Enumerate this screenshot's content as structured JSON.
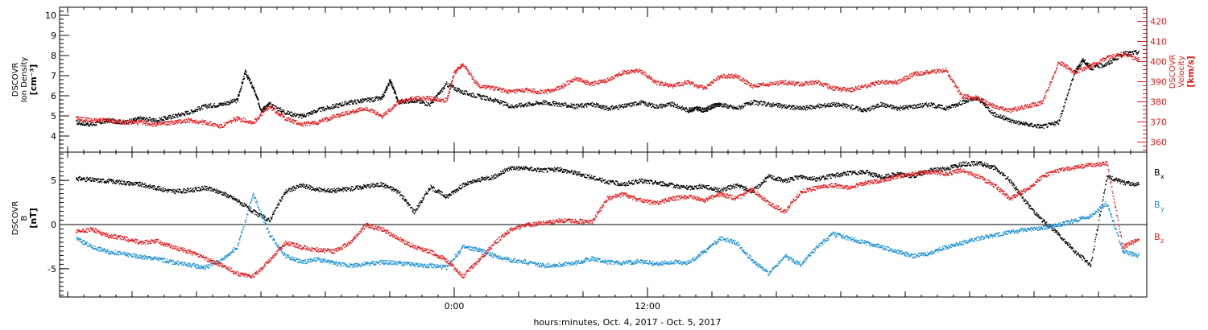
{
  "colors": {
    "black": "#000000",
    "red": "#e8191c",
    "blue": "#1a8fd6"
  },
  "chart_data": [
    {
      "type": "scatter",
      "panel": "top",
      "ylabel_lines": [
        "DSCOVR",
        "Ion Density"
      ],
      "yunit": "[cm⁻³]",
      "ylim": [
        3.2,
        10.4
      ],
      "yticks": [
        4,
        5,
        6,
        7,
        8,
        9,
        10
      ],
      "y2label_lines": [
        "DSCOVR",
        "Velocity"
      ],
      "y2unit": "[km/s]",
      "y2lim": [
        355,
        427
      ],
      "y2ticks": [
        360,
        370,
        380,
        390,
        400,
        410,
        420
      ],
      "series": [
        {
          "color": "black",
          "axis": "left",
          "x": [
            -23.5,
            -22.5,
            -21.5,
            -20.5,
            -19.5,
            -18.5,
            -17.5,
            -16.5,
            -15.5,
            -14.5,
            -13.5,
            -13,
            -12.5,
            -12,
            -11.5,
            -10.5,
            -9.5,
            -8.5,
            -7.5,
            -6.5,
            -5.5,
            -4.5,
            -4,
            -3.5,
            -2.5,
            -1.5,
            -0.5,
            0.5,
            1.5,
            2.5,
            3.5,
            4.5,
            5.5,
            6.5,
            7.5,
            8.5,
            9.5,
            10.5,
            11.5,
            12.5,
            13.5,
            14.5,
            15,
            15.5,
            16,
            16.5,
            17.5,
            18.5,
            19.5,
            20.5,
            21.5,
            22.5,
            23.5,
            24.5,
            25.5,
            26.5,
            27.5,
            28.5,
            29.5,
            30.5,
            31.5,
            32.5,
            33.5,
            34.5,
            35.5,
            36.5,
            37.5,
            38.5,
            39,
            39.5,
            40.5,
            41.5,
            42.5
          ],
          "y": [
            4.7,
            4.6,
            4.8,
            4.7,
            4.9,
            4.8,
            5.0,
            5.2,
            5.5,
            5.6,
            5.8,
            7.2,
            6.4,
            5.3,
            5.6,
            5.2,
            5.0,
            5.3,
            5.5,
            5.7,
            5.8,
            5.9,
            6.8,
            5.7,
            5.8,
            5.6,
            6.6,
            6.2,
            6.0,
            5.8,
            5.5,
            5.6,
            5.7,
            5.6,
            5.5,
            5.6,
            5.4,
            5.5,
            5.7,
            5.5,
            5.6,
            5.3,
            5.4,
            5.3,
            5.5,
            5.6,
            5.4,
            5.7,
            5.6,
            5.5,
            5.4,
            5.5,
            5.6,
            5.5,
            5.3,
            5.6,
            5.4,
            5.5,
            5.6,
            5.4,
            5.7,
            5.9,
            5.1,
            4.8,
            4.6,
            4.5,
            4.7,
            7.2,
            7.8,
            7.4,
            7.6,
            8.1,
            8.2
          ]
        },
        {
          "color": "red",
          "axis": "right",
          "x": [
            -23.5,
            -22.5,
            -21.5,
            -20.5,
            -19.5,
            -18.5,
            -17.5,
            -16.5,
            -15.5,
            -14.5,
            -13.5,
            -12.5,
            -11.5,
            -10.5,
            -9.5,
            -8.5,
            -7.5,
            -6.5,
            -5.5,
            -4.5,
            -3.5,
            -2.5,
            -1.5,
            -0.5,
            0,
            0.5,
            1.5,
            2.5,
            3.5,
            4.5,
            5.5,
            6.5,
            7.5,
            8.5,
            9.5,
            10.5,
            11.5,
            12.5,
            13.5,
            14.5,
            15.5,
            16.5,
            17.5,
            18.5,
            19.5,
            20.5,
            21.5,
            22.5,
            23.5,
            24.5,
            25.5,
            26.5,
            27.5,
            28.5,
            29.5,
            30.5,
            31.5,
            32.5,
            33.5,
            34.5,
            35.5,
            36.5,
            37.5,
            38.5,
            39.5,
            40.5,
            41.5,
            42.5
          ],
          "y": [
            372,
            371,
            371,
            370,
            370,
            369,
            370,
            371,
            370,
            368,
            372,
            370,
            378,
            372,
            369,
            370,
            373,
            375,
            377,
            373,
            380,
            382,
            382,
            381,
            395,
            399,
            388,
            387,
            385,
            386,
            385,
            387,
            392,
            389,
            391,
            395,
            396,
            390,
            388,
            390,
            387,
            393,
            393,
            388,
            389,
            390,
            389,
            390,
            387,
            386,
            388,
            390,
            390,
            394,
            395,
            396,
            383,
            382,
            378,
            376,
            378,
            380,
            400,
            395,
            398,
            402,
            404,
            401
          ]
        }
      ]
    },
    {
      "type": "scatter",
      "panel": "bottom",
      "ylabel_lines": [
        "DSCOVR",
        "B"
      ],
      "yunit": "[nT]",
      "ylim": [
        -8.2,
        8.2
      ],
      "yticks": [
        -5,
        0,
        5
      ],
      "ytick_labels": [
        "-5",
        "0",
        "5"
      ],
      "legend": [
        "B",
        "B",
        "B"
      ],
      "legend_subscripts": [
        "x",
        "y",
        "z"
      ],
      "legend_position": "right",
      "series": [
        {
          "color": "black",
          "x": [
            -23.5,
            -22.5,
            -21.5,
            -20.5,
            -19.5,
            -18.5,
            -17.5,
            -16.5,
            -15.5,
            -14.5,
            -13.5,
            -12.5,
            -11.5,
            -10.5,
            -9.5,
            -8.5,
            -7.5,
            -6.5,
            -5.5,
            -4.5,
            -3.5,
            -2.5,
            -1.5,
            -0.5,
            0.5,
            1.5,
            2.5,
            3.5,
            4.5,
            5.5,
            6.5,
            7.5,
            8.5,
            9.5,
            10.5,
            11.5,
            12.5,
            13.5,
            14.5,
            15.5,
            16.5,
            17.5,
            18.5,
            19.5,
            20.5,
            21.5,
            22.5,
            23.5,
            24.5,
            25.5,
            26.5,
            27.5,
            28.5,
            29.5,
            30.5,
            31.5,
            32.5,
            33.5,
            34.5,
            35.5,
            36.5,
            37.5,
            38.5,
            39.5,
            40.5,
            41.5,
            42.5
          ],
          "y": [
            5.3,
            5.1,
            5.0,
            4.8,
            4.6,
            4.2,
            3.8,
            3.9,
            4.2,
            3.7,
            2.8,
            1.5,
            0.5,
            3.8,
            4.5,
            4.0,
            3.9,
            4.1,
            4.4,
            4.6,
            3.8,
            1.5,
            4.3,
            3.2,
            4.5,
            5.1,
            5.5,
            6.5,
            6.4,
            6.2,
            6.3,
            5.9,
            5.4,
            4.9,
            4.6,
            5.0,
            4.8,
            4.5,
            4.2,
            4.4,
            3.9,
            4.5,
            3.8,
            5.5,
            5.0,
            5.5,
            5.2,
            5.6,
            5.9,
            6.0,
            5.4,
            5.8,
            5.5,
            6.2,
            6.4,
            6.9,
            7.0,
            6.5,
            5.0,
            2.5,
            0.5,
            -1.0,
            -3.0,
            -4.5,
            5.5,
            4.8,
            4.6
          ]
        },
        {
          "color": "blue",
          "x": [
            -23.5,
            -22.5,
            -21.5,
            -20.5,
            -19.5,
            -18.5,
            -17.5,
            -16.5,
            -15.5,
            -14.5,
            -13.5,
            -12.5,
            -11.5,
            -10.5,
            -9.5,
            -8.5,
            -7.5,
            -6.5,
            -5.5,
            -4.5,
            -3.5,
            -2.5,
            -1.5,
            -0.5,
            0.5,
            1.5,
            2.5,
            3.5,
            4.5,
            5.5,
            6.5,
            7.5,
            8.5,
            9.5,
            10.5,
            11.5,
            12.5,
            13.5,
            14.5,
            15.5,
            16.5,
            17.5,
            18.5,
            19.5,
            20.5,
            21.5,
            22.5,
            23.5,
            24.5,
            25.5,
            26.5,
            27.5,
            28.5,
            29.5,
            30.5,
            31.5,
            32.5,
            33.5,
            34.5,
            35.5,
            36.5,
            37.5,
            38.5,
            39.5,
            40.5,
            41.5,
            42.5
          ],
          "y": [
            -1.5,
            -2.5,
            -3.0,
            -3.3,
            -3.6,
            -3.8,
            -4.2,
            -4.5,
            -4.8,
            -4.0,
            -2.5,
            3.5,
            -1.0,
            -3.5,
            -4.2,
            -3.9,
            -4.3,
            -4.6,
            -4.4,
            -4.2,
            -4.3,
            -4.5,
            -4.6,
            -4.8,
            -2.5,
            -2.8,
            -3.5,
            -4.0,
            -4.2,
            -4.6,
            -4.5,
            -4.3,
            -3.8,
            -4.2,
            -4.3,
            -4.1,
            -4.4,
            -4.2,
            -4.3,
            -3.0,
            -1.5,
            -2.0,
            -4.0,
            -5.5,
            -3.5,
            -4.5,
            -2.5,
            -1.0,
            -1.5,
            -2.0,
            -2.5,
            -3.0,
            -3.5,
            -3.2,
            -2.5,
            -2.0,
            -1.5,
            -1.2,
            -0.8,
            -0.5,
            -0.3,
            0.0,
            0.5,
            1.0,
            2.5,
            -3.0,
            -3.5
          ]
        },
        {
          "color": "red",
          "x": [
            -23.5,
            -22.5,
            -21.5,
            -20.5,
            -19.5,
            -18.5,
            -17.5,
            -16.5,
            -15.5,
            -14.5,
            -13.5,
            -12.5,
            -11.5,
            -10.5,
            -9.5,
            -8.5,
            -7.5,
            -6.5,
            -5.5,
            -4.5,
            -3.5,
            -2.5,
            -1.5,
            -0.5,
            0.5,
            1.5,
            2.5,
            3.5,
            4.5,
            5.5,
            6.5,
            7.5,
            8.5,
            9.5,
            10.5,
            11.5,
            12.5,
            13.5,
            14.5,
            15.5,
            16.5,
            17.5,
            18.5,
            19.5,
            20.5,
            21.5,
            22.5,
            23.5,
            24.5,
            25.5,
            26.5,
            27.5,
            28.5,
            29.5,
            30.5,
            31.5,
            32.5,
            33.5,
            34.5,
            35.5,
            36.5,
            37.5,
            38.5,
            39.5,
            40.5,
            41.5,
            42.5
          ],
          "y": [
            -0.8,
            -0.5,
            -1.2,
            -1.5,
            -2.0,
            -1.8,
            -2.5,
            -3.0,
            -3.8,
            -4.5,
            -5.5,
            -5.8,
            -4.0,
            -2.0,
            -2.5,
            -2.8,
            -3.0,
            -2.0,
            0.0,
            -0.5,
            -1.5,
            -2.5,
            -3.0,
            -4.0,
            -5.8,
            -4.0,
            -2.0,
            -0.5,
            0.0,
            0.2,
            0.5,
            0.5,
            0.3,
            3.0,
            3.5,
            2.8,
            2.5,
            3.0,
            3.2,
            2.8,
            3.5,
            3.0,
            4.0,
            2.5,
            1.5,
            3.8,
            4.2,
            4.5,
            4.2,
            4.8,
            5.0,
            5.5,
            5.8,
            6.0,
            5.8,
            6.2,
            5.5,
            4.5,
            3.0,
            4.0,
            5.5,
            6.2,
            6.5,
            6.8,
            7.0,
            -2.5,
            -1.5
          ]
        }
      ]
    }
  ],
  "time_axis": {
    "xlim": [
      -24.5,
      43
    ],
    "major_ticks": [
      0,
      12
    ],
    "major_labels": [
      "0:00",
      "12:00"
    ],
    "xlabel": "hours:minutes, Oct.  4, 2017 - Oct.  5, 2017"
  }
}
